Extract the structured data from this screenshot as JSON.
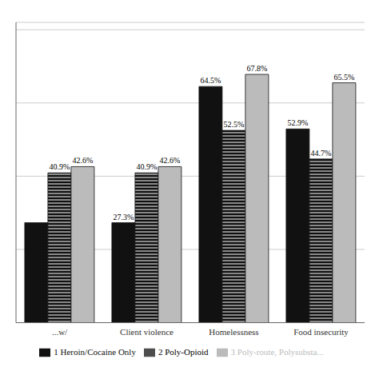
{
  "chart_data": {
    "type": "bar",
    "categories": [
      "...w/",
      "Client violence",
      "Homelessness",
      "Food insecurity"
    ],
    "series": [
      {
        "name": "1 Heroin/Cocaine Only",
        "color": "#111111",
        "values": [
          27.3,
          27.3,
          64.5,
          52.9
        ],
        "value_labels": [
          null,
          "27.3%",
          "64.5%",
          "52.9%"
        ]
      },
      {
        "name": "2 Poly-Opioid",
        "color": "#111111",
        "values": [
          40.9,
          40.9,
          52.5,
          44.7
        ],
        "value_labels": [
          "40.9%",
          "40.9%",
          "52.5%",
          "44.7%"
        ]
      },
      {
        "name": "3 Poly-route, Polysubsta...",
        "color": "#bbbbbb",
        "values": [
          42.6,
          42.6,
          67.8,
          65.5
        ],
        "value_labels": [
          "42.6%",
          "42.6%",
          "67.8%",
          "65.5%"
        ]
      }
    ],
    "ylim": [
      0,
      82
    ],
    "yticks": [
      0,
      20,
      40,
      60,
      80
    ],
    "grid": true,
    "legend": "bottom",
    "data_labels": true,
    "tick_labels": "x"
  }
}
